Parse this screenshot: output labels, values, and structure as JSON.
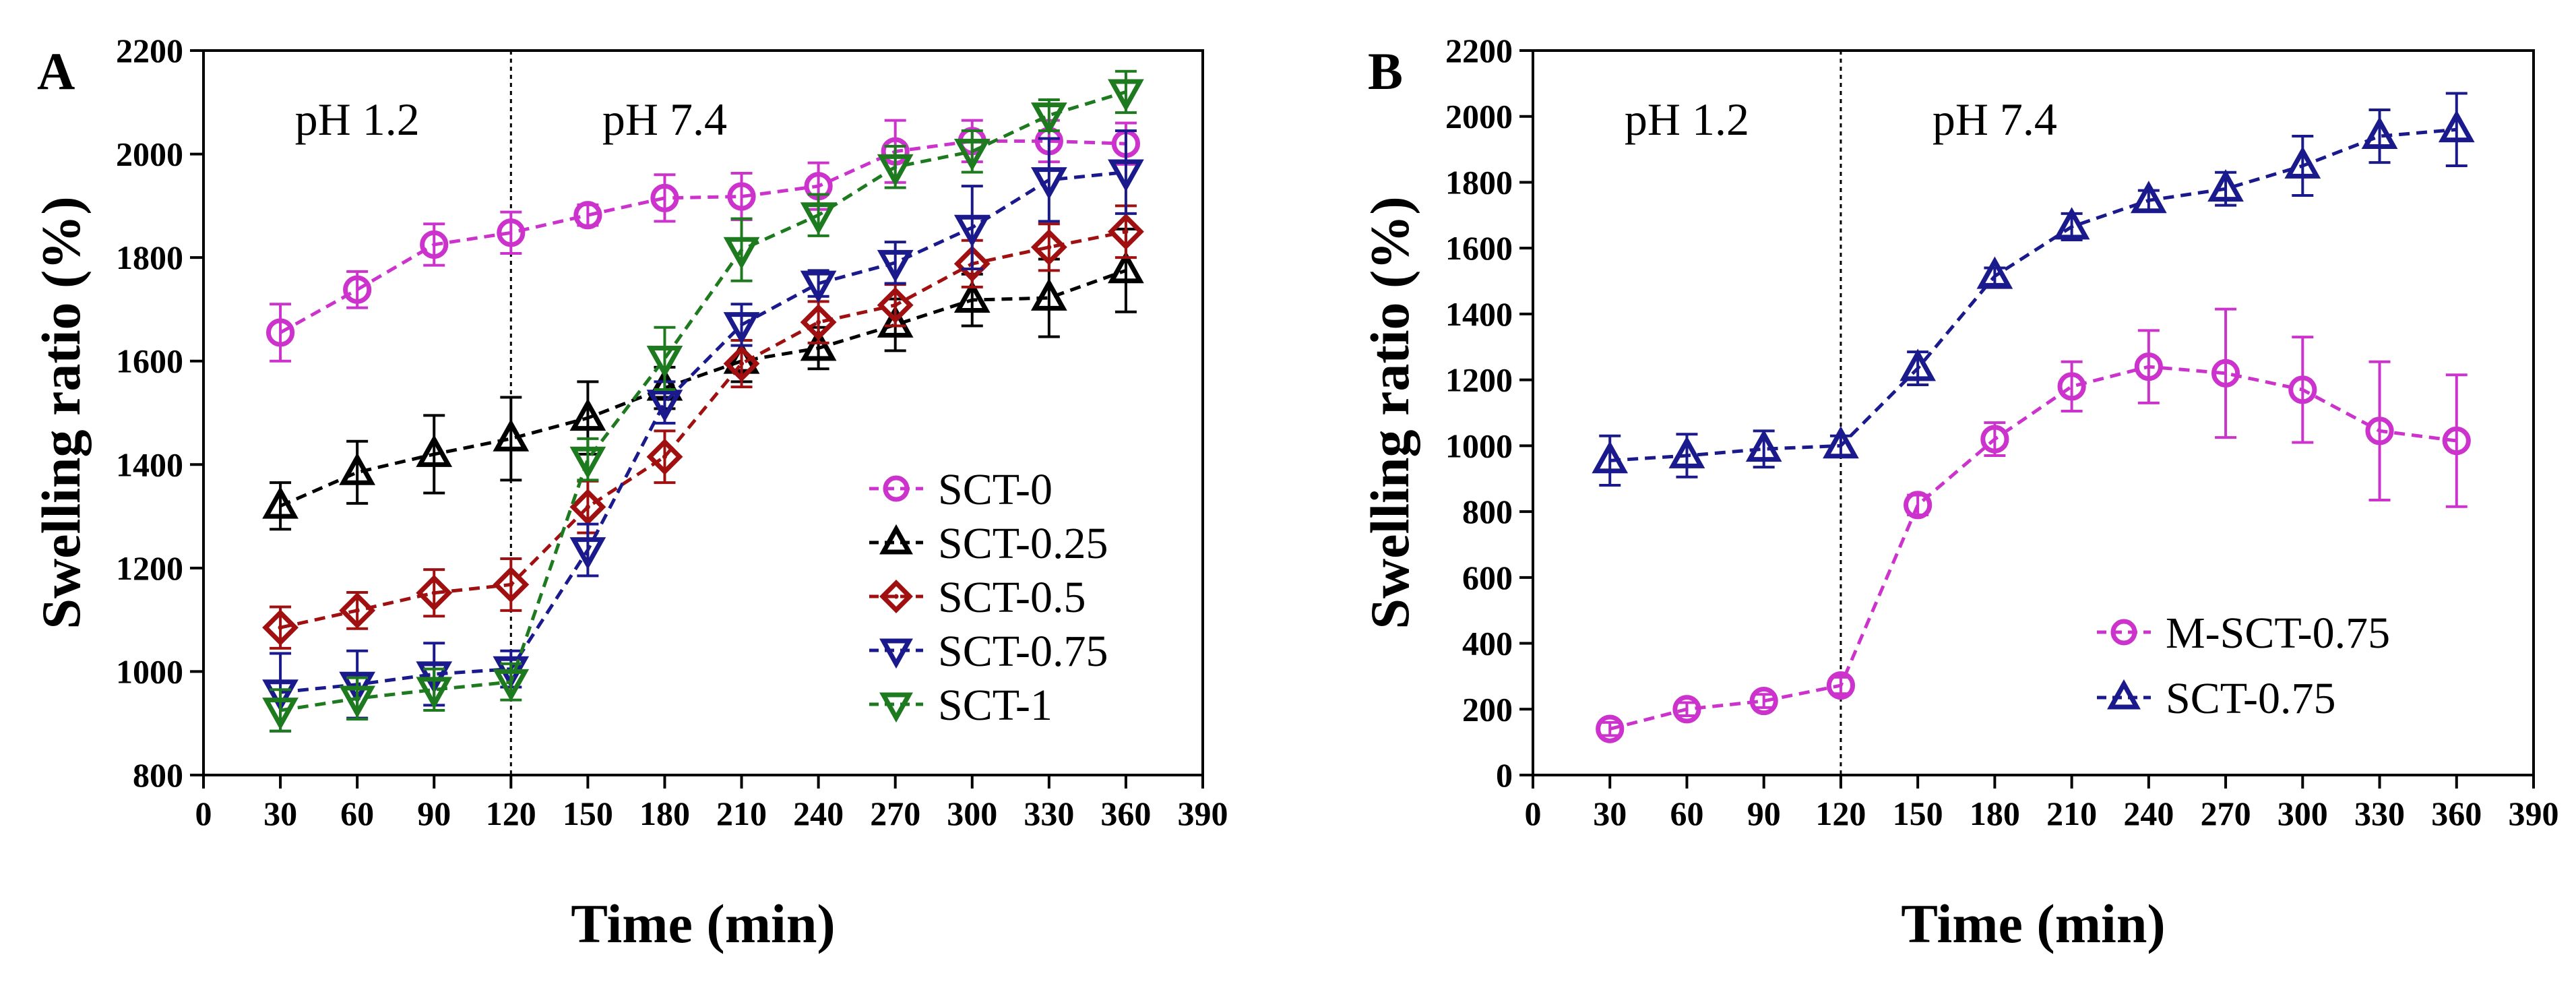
{
  "colors": {
    "magenta": "#cc33cc",
    "black": "#000000",
    "darkred": "#a01010",
    "navy": "#1a1a8c",
    "green": "#1e7a1e"
  },
  "chart_data": [
    {
      "type": "line",
      "panel_label": "A",
      "xlabel": "Time (min)",
      "ylabel": "Swelling ratio (%)",
      "xlim": [
        0,
        390
      ],
      "ylim": [
        800,
        2200
      ],
      "xticks": [
        0,
        30,
        60,
        90,
        120,
        150,
        180,
        210,
        240,
        270,
        300,
        330,
        360,
        390
      ],
      "yticks": [
        800,
        1000,
        1200,
        1400,
        1600,
        1800,
        2000,
        2200
      ],
      "grid": false,
      "legend_position": "lower-right",
      "annotations": [
        {
          "text": "pH 1.2",
          "x": 60
        },
        {
          "text": "pH 7.4",
          "x": 180
        }
      ],
      "divider_x": 120,
      "x": [
        30,
        60,
        90,
        120,
        150,
        180,
        210,
        240,
        270,
        300,
        330,
        360
      ],
      "series": [
        {
          "name": "SCT-0",
          "color": "#cc33cc",
          "marker": "circle",
          "values": [
            1655,
            1738,
            1825,
            1848,
            1882,
            1915,
            1918,
            1938,
            2005,
            2025,
            2025,
            2020
          ],
          "errors": [
            55,
            35,
            40,
            40,
            20,
            45,
            45,
            45,
            60,
            40,
            40,
            40
          ]
        },
        {
          "name": "SCT-0.25",
          "color": "#000000",
          "marker": "triangle-up",
          "values": [
            1320,
            1385,
            1420,
            1450,
            1490,
            1548,
            1600,
            1625,
            1670,
            1718,
            1722,
            1775
          ],
          "errors": [
            45,
            60,
            75,
            80,
            70,
            40,
            40,
            40,
            50,
            50,
            75,
            80
          ]
        },
        {
          "name": "SCT-0.5",
          "color": "#a01010",
          "marker": "diamond",
          "values": [
            1085,
            1118,
            1152,
            1168,
            1318,
            1415,
            1595,
            1675,
            1708,
            1788,
            1820,
            1850
          ],
          "errors": [
            40,
            35,
            45,
            50,
            50,
            50,
            45,
            40,
            40,
            45,
            45,
            50
          ]
        },
        {
          "name": "SCT-0.75",
          "color": "#1a1a8c",
          "marker": "triangle-down",
          "values": [
            960,
            975,
            995,
            1005,
            1235,
            1520,
            1670,
            1750,
            1790,
            1858,
            1950,
            1965
          ],
          "errors": [
            75,
            65,
            60,
            35,
            50,
            40,
            40,
            25,
            40,
            80,
            80,
            80
          ]
        },
        {
          "name": "SCT-1",
          "color": "#1e7a1e",
          "marker": "triangle-down",
          "values": [
            925,
            948,
            965,
            980,
            1410,
            1605,
            1815,
            1882,
            1975,
            2005,
            2075,
            2120
          ],
          "errors": [
            40,
            40,
            40,
            35,
            40,
            60,
            60,
            40,
            40,
            40,
            30,
            40
          ]
        }
      ]
    },
    {
      "type": "line",
      "panel_label": "B",
      "xlabel": "Time (min)",
      "ylabel": "Swelling ratio (%)",
      "xlim": [
        0,
        390
      ],
      "ylim": [
        0,
        2200
      ],
      "xticks": [
        0,
        30,
        60,
        90,
        120,
        150,
        180,
        210,
        240,
        270,
        300,
        330,
        360,
        390
      ],
      "yticks": [
        0,
        200,
        400,
        600,
        800,
        1000,
        1200,
        1400,
        1600,
        1800,
        2000,
        2200
      ],
      "grid": false,
      "legend_position": "lower-right",
      "annotations": [
        {
          "text": "pH 1.2",
          "x": 60
        },
        {
          "text": "pH 7.4",
          "x": 180
        }
      ],
      "divider_x": 120,
      "x": [
        30,
        60,
        90,
        120,
        150,
        180,
        210,
        240,
        270,
        300,
        330,
        360
      ],
      "series": [
        {
          "name": "M-SCT-0.75",
          "color": "#cc33cc",
          "marker": "circle",
          "values": [
            140,
            200,
            225,
            272,
            820,
            1020,
            1180,
            1240,
            1220,
            1170,
            1045,
            1015
          ],
          "errors": [
            20,
            20,
            20,
            25,
            30,
            50,
            75,
            110,
            195,
            160,
            210,
            200
          ]
        },
        {
          "name": "SCT-0.75",
          "color": "#1a1a8c",
          "marker": "triangle-up",
          "values": [
            955,
            970,
            990,
            1000,
            1235,
            1515,
            1665,
            1745,
            1780,
            1850,
            1940,
            1960
          ],
          "errors": [
            75,
            65,
            55,
            30,
            50,
            25,
            40,
            30,
            50,
            90,
            80,
            110
          ]
        }
      ]
    }
  ]
}
